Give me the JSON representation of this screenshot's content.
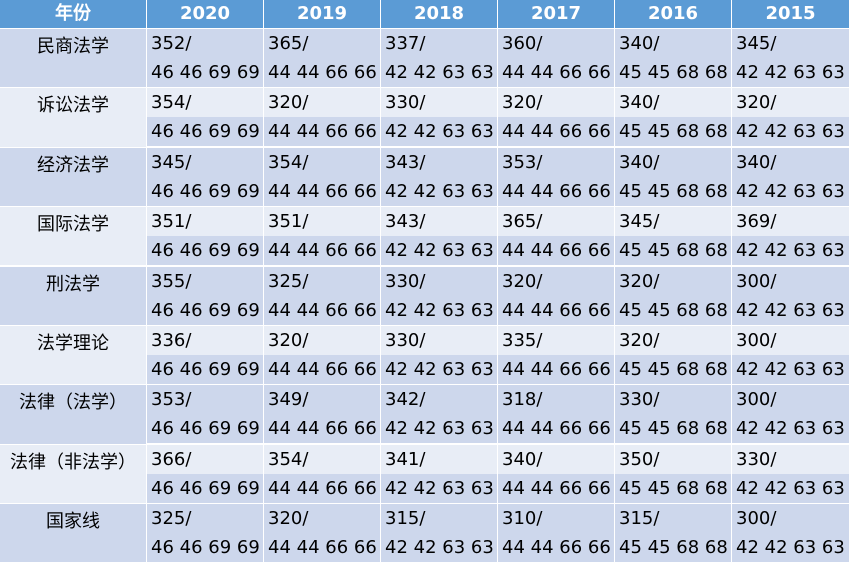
{
  "table": {
    "header": [
      "年份",
      "2020",
      "2019",
      "2018",
      "2017",
      "2016",
      "2015"
    ],
    "rows": [
      {
        "label": "民商法学",
        "cells": [
          [
            "352/",
            "46 46 69 69"
          ],
          [
            "365/",
            "44 44 66 66"
          ],
          [
            "337/",
            "42 42 63 63"
          ],
          [
            "360/",
            "44 44 66 66"
          ],
          [
            "340/",
            "45 45 68 68"
          ],
          [
            "345/",
            "42 42 63 63"
          ]
        ]
      },
      {
        "label": "诉讼法学",
        "cells": [
          [
            "354/",
            "46 46 69 69"
          ],
          [
            "320/",
            "44 44 66 66"
          ],
          [
            "330/",
            "42 42 63 63"
          ],
          [
            "320/",
            "44 44 66 66"
          ],
          [
            "340/",
            "45 45 68 68"
          ],
          [
            "320/",
            "42 42 63 63"
          ]
        ]
      },
      {
        "label": "经济法学",
        "cells": [
          [
            "345/",
            "46 46 69 69"
          ],
          [
            "354/",
            "44 44 66 66"
          ],
          [
            "343/",
            "42 42 63 63"
          ],
          [
            "353/",
            "44 44 66 66"
          ],
          [
            "340/",
            "45 45 68 68"
          ],
          [
            "340/",
            "42 42 63 63"
          ]
        ]
      },
      {
        "label": "国际法学",
        "cells": [
          [
            "351/",
            "46 46 69 69"
          ],
          [
            "351/",
            "44 44 66 66"
          ],
          [
            "343/",
            "42 42 63 63"
          ],
          [
            "365/",
            "44 44 66 66"
          ],
          [
            "345/",
            "45 45 68 68"
          ],
          [
            "369/",
            "42 42 63 63"
          ]
        ]
      },
      {
        "label": "刑法学",
        "cells": [
          [
            "355/",
            "46 46 69 69"
          ],
          [
            "325/",
            "44 44 66 66"
          ],
          [
            "330/",
            "42 42 63 63"
          ],
          [
            "320/",
            "44 44 66 66"
          ],
          [
            "320/",
            "45 45 68 68"
          ],
          [
            "300/",
            "42 42 63 63"
          ]
        ]
      },
      {
        "label": "法学理论",
        "cells": [
          [
            "336/",
            "46 46 69 69"
          ],
          [
            "320/",
            "44 44 66 66"
          ],
          [
            "330/",
            "42 42 63 63"
          ],
          [
            "335/",
            "44 44 66 66"
          ],
          [
            "320/",
            "45 45 68 68"
          ],
          [
            "300/",
            "42 42 63 63"
          ]
        ]
      },
      {
        "label": "法律（法学）",
        "cells": [
          [
            "353/",
            "46 46 69 69"
          ],
          [
            "349/",
            "44 44 66 66"
          ],
          [
            "342/",
            "42 42 63 63"
          ],
          [
            "318/",
            "44 44 66 66"
          ],
          [
            "330/",
            "45 45 68 68"
          ],
          [
            "300/",
            "42 42 63 63"
          ]
        ]
      },
      {
        "label": "法律（非法学）",
        "cells": [
          [
            "366/",
            "46 46 69 69"
          ],
          [
            "354/",
            "44 44 66 66"
          ],
          [
            "341/",
            "42 42 63 63"
          ],
          [
            "340/",
            "44 44 66 66"
          ],
          [
            "350/",
            "45 45 68 68"
          ],
          [
            "330/",
            "42 42 63 63"
          ]
        ]
      },
      {
        "label": "国家线",
        "cells": [
          [
            "325/",
            "46 46 69 69"
          ],
          [
            "320/",
            "44 44 66 66"
          ],
          [
            "315/",
            "42 42 63 63"
          ],
          [
            "310/",
            "44 44 66 66"
          ],
          [
            "315/",
            "45 45 68 68"
          ],
          [
            "300/",
            "42 42 63 63"
          ]
        ]
      }
    ]
  }
}
